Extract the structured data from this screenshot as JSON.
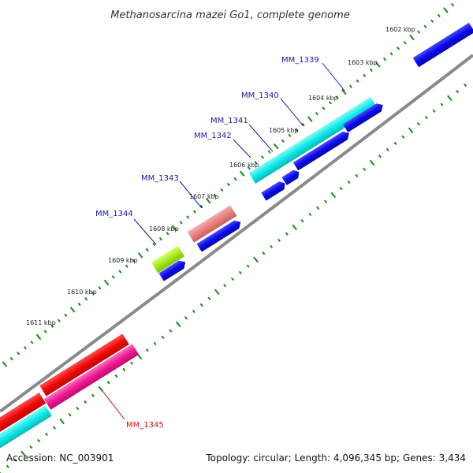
{
  "title": "Methanosarcina mazei Go1, complete genome",
  "footer": {
    "accession": "Accession: NC_003901",
    "summary": "Topology: circular; Length: 4,096,345 bp; Genes: 3,434"
  },
  "tick_labels": [
    "1602 kbp",
    "1603 kbp",
    "1604 kbp",
    "1605 kbp",
    "1606 kbp",
    "1607 kbp",
    "1608 kbp",
    "1609 kbp",
    "1610 kbp",
    "1611 kbp"
  ],
  "gene_labels": [
    "MM_1339",
    "MM_1340",
    "MM_1341",
    "MM_1342",
    "MM_1343",
    "MM_1344",
    "MM_1345"
  ],
  "colors": {
    "backbone": "#8a8a8a",
    "cds": "#0a0ae6",
    "trna_cyan": "#10e8e8",
    "salmon": "#e88080",
    "lime": "#a8e820",
    "red": "#ee0a0a",
    "magenta": "#ee1a90",
    "tick": "#1a8a1a",
    "label_blue": "#1a1aa0",
    "label_red": "#d01010"
  }
}
